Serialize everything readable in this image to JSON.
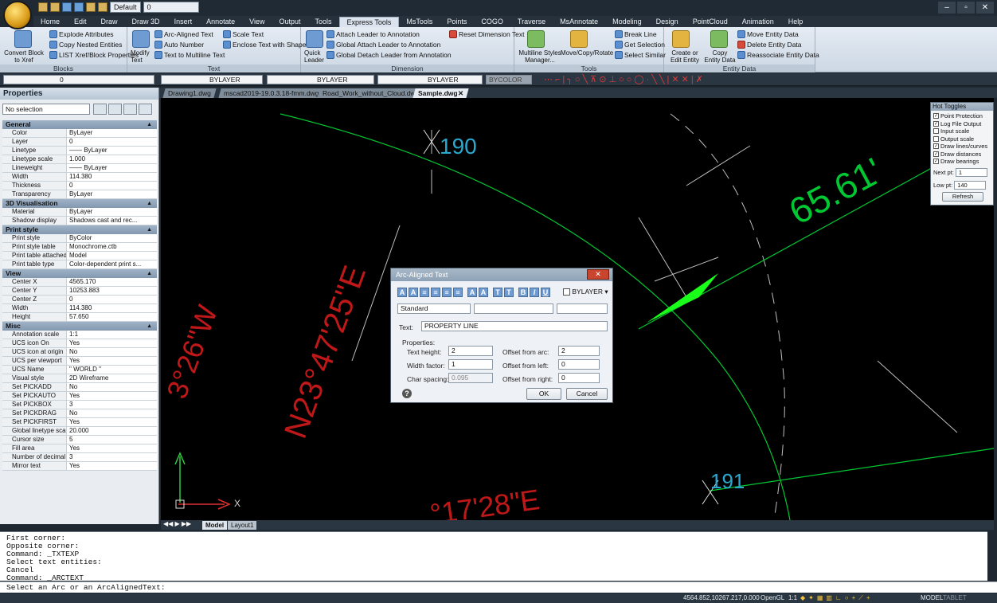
{
  "titlebar": {
    "workspace": "Default",
    "layer": "0",
    "min": "–",
    "max": "▫",
    "close": "✕"
  },
  "tabs": [
    "Home",
    "Edit",
    "Draw",
    "Draw 3D",
    "Insert",
    "Annotate",
    "View",
    "Output",
    "Tools",
    "Express Tools",
    "MsTools",
    "Points",
    "COGO",
    "Traverse",
    "MsAnnotate",
    "Modeling",
    "Design",
    "PointCloud",
    "Animation",
    "Help"
  ],
  "active_tab": "Express Tools",
  "ribbon": {
    "blocks": {
      "title": "Blocks",
      "explode": "Explode Attributes",
      "copy_nested": "Copy Nested Entities",
      "convert": "Convert Block to Xref",
      "list": "LIST Xref/Block Properties"
    },
    "text": {
      "title": "Text",
      "arc_aligned": "Arc-Aligned Text",
      "auto_number": "Auto Number",
      "text_to_mtext": "Text to Multiline Text",
      "scale_text": "Scale Text",
      "enclose": "Enclose Text with Shape",
      "modify": "Modify Text"
    },
    "dimension": {
      "title": "Dimension",
      "attach": "Attach Leader to Annotation",
      "global_attach": "Global Attach Leader to Annotation",
      "global_detach": "Global Detach Leader from Annotation",
      "quick_leader": "Quick Leader",
      "reset": "Reset Dimension Text"
    },
    "tools": {
      "title": "Tools",
      "mstyles": "Multiline Styles Manager...",
      "move_copy": "Move/Copy/Rotate",
      "break_line": "Break Line",
      "get_selection": "Get Selection",
      "select_similar": "Select Similar"
    },
    "entity_data": {
      "title": "Entity Data",
      "create": "Create or Edit Entity Data",
      "copy": "Copy Entity Data",
      "move": "Move Entity Data",
      "delete": "Delete Entity Data",
      "reassociate": "Reassociate Entity Data"
    }
  },
  "toolbar": {
    "layer": "0",
    "linetype": "BYLAYER",
    "lineweight": "BYLAYER",
    "color_layer": "BYLAYER",
    "plotstyle": "BYCOLOR"
  },
  "properties": {
    "title": "Properties",
    "selection": "No selection",
    "sections": [
      {
        "name": "General",
        "rows": [
          [
            "Color",
            "ByLayer"
          ],
          [
            "Layer",
            "0"
          ],
          [
            "Linetype",
            "—— ByLayer"
          ],
          [
            "Linetype scale",
            "1.000"
          ],
          [
            "Lineweight",
            "—— ByLayer"
          ],
          [
            "Width",
            "114.380"
          ],
          [
            "Thickness",
            "0"
          ],
          [
            "Transparency",
            "ByLayer"
          ]
        ]
      },
      {
        "name": "3D Visualisation",
        "rows": [
          [
            "Material",
            "ByLayer"
          ],
          [
            "Shadow display",
            "Shadows cast and rec..."
          ]
        ]
      },
      {
        "name": "Print style",
        "rows": [
          [
            "Print style",
            "ByColor"
          ],
          [
            "Print style table",
            "Monochrome.ctb"
          ],
          [
            "Print table attached to",
            "Model"
          ],
          [
            "Print table type",
            "Color-dependent print s..."
          ]
        ]
      },
      {
        "name": "View",
        "rows": [
          [
            "Center X",
            "4565.170"
          ],
          [
            "Center Y",
            "10253.883"
          ],
          [
            "Center Z",
            "0"
          ],
          [
            "Width",
            "114.380"
          ],
          [
            "Height",
            "57.650"
          ]
        ]
      },
      {
        "name": "Misc",
        "rows": [
          [
            "Annotation scale",
            "1:1"
          ],
          [
            "UCS icon On",
            "Yes"
          ],
          [
            "UCS icon at origin",
            "No"
          ],
          [
            "UCS per viewport",
            "Yes"
          ],
          [
            "UCS Name",
            "\" WORLD \""
          ],
          [
            "Visual style",
            "2D Wireframe"
          ],
          [
            "Set PICKADD",
            "No"
          ],
          [
            "Set PICKAUTO",
            "Yes"
          ],
          [
            "Set PICKBOX",
            "3"
          ],
          [
            "Set PICKDRAG",
            "No"
          ],
          [
            "Set PICKFIRST",
            "Yes"
          ],
          [
            "Global linetype scale",
            "20.000"
          ],
          [
            "Cursor size",
            "5"
          ],
          [
            "Fill area",
            "Yes"
          ],
          [
            "Number of decimal plac...",
            "3"
          ],
          [
            "Mirror text",
            "Yes"
          ]
        ]
      }
    ]
  },
  "doc_tabs": [
    "Drawing1.dwg",
    "mscad2019-19.0.3.18-fmm.dwg",
    "Road_Work_without_Cloud.dwg",
    "Sample.dwg"
  ],
  "active_doc": "Sample.dwg",
  "drawing": {
    "pt1": "190",
    "pt2": "191",
    "dist": "65.61'",
    "bearing1": "N23°47'25\"E",
    "bearing2": "3°26\"W",
    "bearing3": "°17'28\"E",
    "arc_text": "PROPERTY LINE"
  },
  "layout_tabs": [
    "Model",
    "Layout1"
  ],
  "dialog": {
    "title": "Arc-Aligned Text",
    "color": "BYLAYER",
    "style": "Standard",
    "text_label": "Text:",
    "text_value": "PROPERTY LINE",
    "properties_label": "Properties:",
    "text_height_label": "Text height:",
    "text_height": "2",
    "width_factor_label": "Width factor:",
    "width_factor": "1",
    "char_spacing_label": "Char spacing:",
    "char_spacing": "0.095",
    "offset_arc_label": "Offset from arc:",
    "offset_arc": "2",
    "offset_left_label": "Offset from left:",
    "offset_left": "0",
    "offset_right_label": "Offset from right:",
    "offset_right": "0",
    "ok": "OK",
    "cancel": "Cancel"
  },
  "hot_toggles": {
    "title": "Hot Toggles",
    "items": [
      [
        "Point Protection",
        true
      ],
      [
        "Log File Output",
        true
      ],
      [
        "Input scale",
        false
      ],
      [
        "Output scale",
        false
      ],
      [
        "Draw lines/curves",
        true
      ],
      [
        "Draw distances",
        true
      ],
      [
        "Draw bearings",
        true
      ]
    ],
    "next_pt_label": "Next pt:",
    "next_pt": "1",
    "low_pt_label": "Low pt:",
    "low_pt": "140",
    "refresh": "Refresh"
  },
  "command_history": [
    "First corner:",
    "Opposite corner:",
    "Command: _TXTEXP",
    "Select text entities:",
    "Cancel",
    "Command: _ARCTEXT"
  ],
  "command_prompt": "Select an Arc or an ArcAlignedText:",
  "status": {
    "coords": "4564.852,10267.217,0.000",
    "renderer": "OpenGL",
    "scale": "1:1",
    "model": "MODEL",
    "tablet": "TABLET"
  },
  "colors": {
    "canvas": "#000000",
    "arc": "#00c832",
    "linework": "#d0d0d0",
    "bearing_text": "#c01818",
    "accent": "#2e8bd6"
  }
}
